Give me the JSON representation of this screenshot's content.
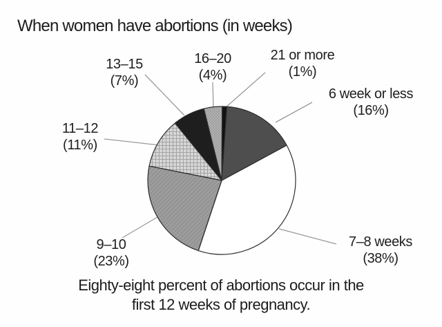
{
  "chart_data": {
    "type": "pie",
    "title": "When women have abortions (in weeks)",
    "caption": {
      "line1": "Eighty-eight percent of abortions occur in the",
      "line2": "first 12 weeks of pregnancy."
    },
    "legend_position": "callout-labels-around-pie",
    "grid": false,
    "units": "percent of abortions",
    "series": [
      {
        "label": "6 week or less",
        "pct_label": "(16%)",
        "value": 16,
        "fill": "#4e4e4e",
        "pattern": null
      },
      {
        "label": "7–8 weeks",
        "pct_label": "(38%)",
        "value": 38,
        "fill": "#ffffff",
        "pattern": null
      },
      {
        "label": "9–10",
        "pct_label": "(23%)",
        "value": 23,
        "fill": "#9d9d9d",
        "pattern": "diag"
      },
      {
        "label": "11–12",
        "pct_label": "(11%)",
        "value": 11,
        "fill": "#d7d7d7",
        "pattern": "crosshatch"
      },
      {
        "label": "13–15",
        "pct_label": "(7%)",
        "value": 7,
        "fill": "#1e1e1e",
        "pattern": null
      },
      {
        "label": "16–20",
        "pct_label": "(4%)",
        "value": 4,
        "fill": "#b2b2b2",
        "pattern": "dots"
      },
      {
        "label": "21 or more",
        "pct_label": "(1%)",
        "value": 1,
        "fill": "#121212",
        "pattern": null
      }
    ],
    "colors": {
      "slice_outline": "#2d2d2d",
      "leader_line": "#9a9a9a",
      "text": "#1d1d1d",
      "background": "#fefefe"
    }
  }
}
